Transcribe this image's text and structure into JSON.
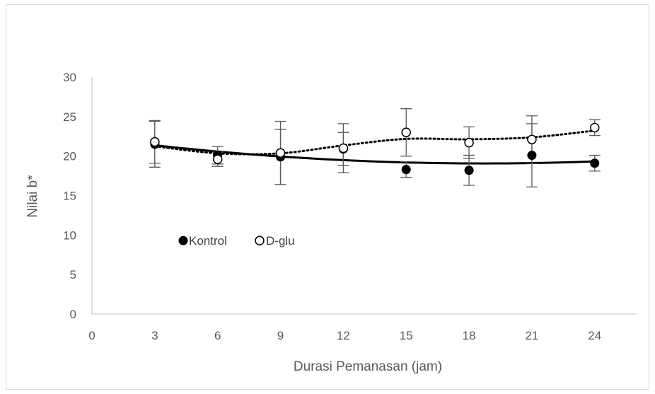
{
  "chart_data": {
    "type": "scatter",
    "title": "",
    "xlabel": "Durasi Pemanasan (jam)",
    "ylabel": "Nilai b*",
    "xlim": [
      0,
      26
    ],
    "ylim": [
      0,
      30
    ],
    "xticks": [
      0,
      3,
      6,
      9,
      12,
      15,
      18,
      21,
      24
    ],
    "yticks": [
      0,
      5,
      10,
      15,
      20,
      25,
      30
    ],
    "grid": false,
    "legend_placement": "inside-left",
    "series": [
      {
        "name": "Kontrol",
        "marker": "filled-circle",
        "trendline": "polynomial-solid",
        "color": "#000000",
        "x": [
          3,
          6,
          9,
          12,
          15,
          18,
          21,
          24
        ],
        "y": [
          21.5,
          20.1,
          19.9,
          20.9,
          18.3,
          18.2,
          20.1,
          19.1
        ],
        "error": [
          2.9,
          1.1,
          3.5,
          2.1,
          1.0,
          1.9,
          4.0,
          1.0
        ]
      },
      {
        "name": "D-glu",
        "marker": "open-circle",
        "trendline": "polynomial-dotted",
        "color": "#000000",
        "x": [
          3,
          6,
          9,
          12,
          15,
          18,
          21,
          24
        ],
        "y": [
          21.8,
          19.6,
          20.4,
          21.0,
          23.0,
          21.7,
          22.1,
          23.6
        ],
        "error": [
          2.7,
          0.9,
          4.0,
          3.1,
          3.0,
          2.0,
          3.0,
          1.0
        ]
      }
    ]
  }
}
